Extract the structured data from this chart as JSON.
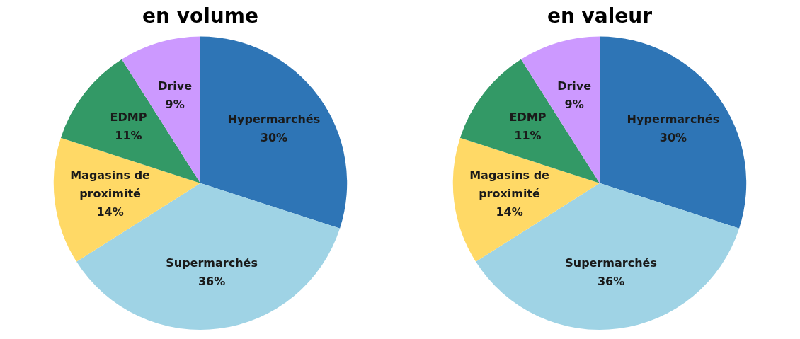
{
  "chart_data": [
    {
      "type": "pie",
      "title": "en volume",
      "categories": [
        "Hypermarchés",
        "Supermarchés",
        "Magasins de proximité",
        "EDMP",
        "Drive"
      ],
      "values": [
        30,
        36,
        14,
        11,
        9
      ],
      "value_labels": [
        "30%",
        "36%",
        "14%",
        "11%",
        "9%"
      ],
      "colors": [
        "#2e75b6",
        "#9fd3e5",
        "#ffd966",
        "#339966",
        "#cc99ff"
      ],
      "legend": false
    },
    {
      "type": "pie",
      "title": "en valeur",
      "categories": [
        "Hypermarchés",
        "Supermarchés",
        "Magasins de proximité",
        "EDMP",
        "Drive"
      ],
      "values": [
        30,
        36,
        14,
        11,
        9
      ],
      "value_labels": [
        "30%",
        "36%",
        "14%",
        "11%",
        "9%"
      ],
      "colors": [
        "#2e75b6",
        "#9fd3e5",
        "#ffd966",
        "#339966",
        "#cc99ff"
      ],
      "legend": false
    }
  ]
}
